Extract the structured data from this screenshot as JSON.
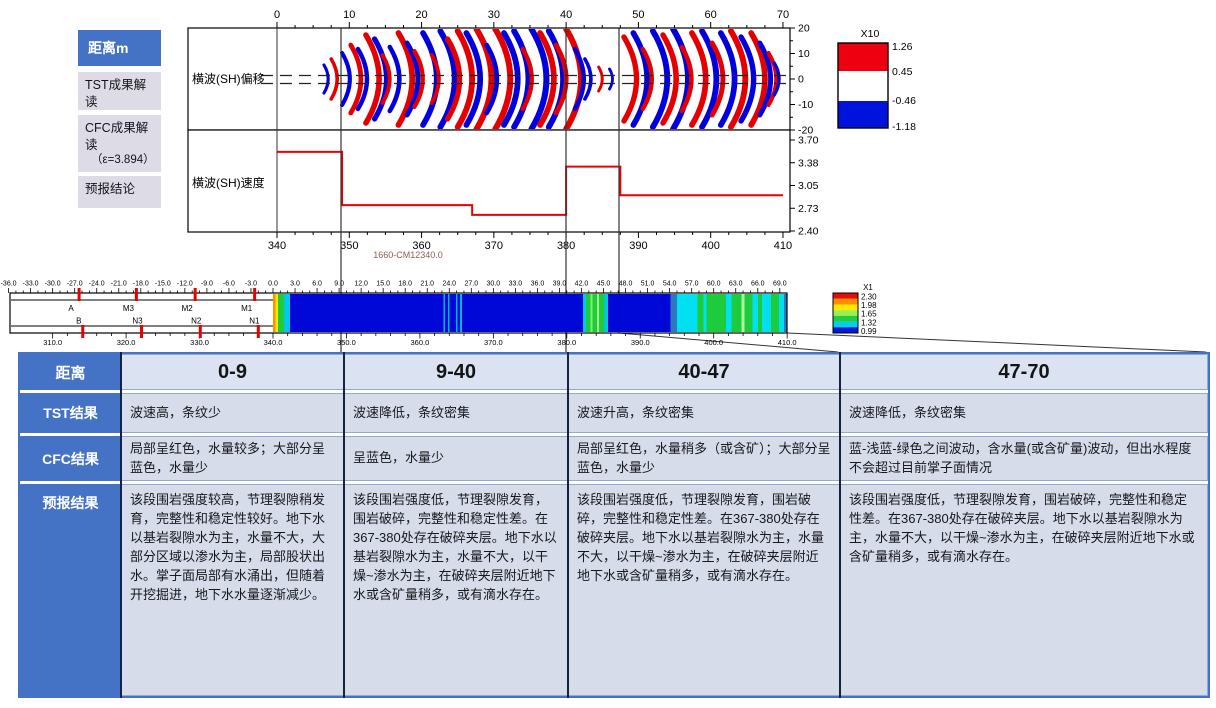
{
  "sidebar": {
    "items": [
      {
        "label": "距离m"
      },
      {
        "label": "TST成果解读"
      },
      {
        "label": "CFC成果解读",
        "sub": "（ε=3.894）"
      },
      {
        "label": "预报结论"
      }
    ]
  },
  "charts": {
    "migration_label": "横波(SH)偏移",
    "velocity_label": "横波(SH)速度",
    "annotation": "1660-CM12340.0",
    "top_axis_ticks": [
      0,
      10,
      20,
      30,
      40,
      50,
      60,
      70
    ],
    "migration_y_ticks": [
      "20",
      "10",
      "0",
      "-10",
      "-20"
    ],
    "velocity_y_ticks": [
      "3.70",
      "3.38",
      "3.05",
      "2.73",
      "2.40"
    ],
    "bottom_axis_ticks": [
      340,
      350,
      360,
      370,
      380,
      390,
      400,
      410
    ],
    "section_lines": [
      9,
      40,
      47
    ]
  },
  "legend_top": {
    "scale": "X10",
    "values": [
      "1.26",
      "0.45",
      "-0.46",
      "-1.18"
    ],
    "band_colors": [
      "#ee0011",
      "#ffffff",
      "#0013dd"
    ]
  },
  "legend_strip": {
    "scale": "X1",
    "values": [
      "2.30",
      "1.98",
      "1.65",
      "1.32",
      "0.99"
    ],
    "band_colors": [
      "#e80b0b",
      "#ff8c00",
      "#ffe800",
      "#9cf04e",
      "#22cc44",
      "#00d0e8",
      "#0018e0"
    ]
  },
  "strip": {
    "ruler_top": {
      "start": -36,
      "end": 69,
      "step": 3
    },
    "ruler_bottom": {
      "start": 310,
      "end": 410,
      "step": 10
    },
    "markers_top": [
      {
        "label": "A",
        "u": -26.4
      },
      {
        "label": "M3",
        "u": -18.6
      },
      {
        "label": "M2",
        "u": -10.6
      },
      {
        "label": "M1",
        "u": -2.5
      }
    ],
    "markers_bottom": [
      {
        "label": "B",
        "u": -25.9
      },
      {
        "label": "N3",
        "u": -17.9
      },
      {
        "label": "N2",
        "u": -9.9
      },
      {
        "label": "N1",
        "u": -2.0
      }
    ]
  },
  "table": {
    "corner": "距离",
    "columns": [
      "0-9",
      "9-40",
      "40-47",
      "47-70"
    ],
    "rows": [
      {
        "label": "TST结果",
        "cells": [
          "波速高，条纹少",
          "波速降低，条纹密集",
          "波速升高，条纹密集",
          "波速降低，条纹密集"
        ]
      },
      {
        "label": "CFC结果",
        "cells": [
          "局部呈红色，水量较多；大部分呈蓝色，水量少",
          "呈蓝色，水量少",
          "局部呈红色，水量稍多（或含矿）；大部分呈蓝色，水量少",
          "蓝-浅蓝-绿色之间波动，含水量(或含矿量)波动，但出水程度不会超过目前掌子面情况"
        ]
      },
      {
        "label": "预报结果",
        "cells": [
          "该段围岩强度较高，节理裂隙稍发育，完整性和稳定性较好。地下水以基岩裂隙水为主，水量不大，大部分区域以渗水为主，局部股状出水。掌子面局部有水涌出，但随着开挖掘进，地下水水量逐渐减少。",
          "该段围岩强度低，节理裂隙发育，围岩破碎，完整性和稳定性差。在367-380处存在破碎夹层。地下水以基岩裂隙水为主，水量不大，以干燥~渗水为主，在破碎夹层附近地下水或含矿量稍多，或有滴水存在。",
          "该段围岩强度低，节理裂隙发育，围岩破碎，完整性和稳定性差。在367-380处存在破碎夹层。地下水以基岩裂隙水为主，水量不大，以干燥~渗水为主，在破碎夹层附近地下水或含矿量稍多，或有滴水存在。",
          "该段围岩强度低，节理裂隙发育，围岩破碎，完整性和稳定性差。在367-380处存在破碎夹层。地下水以基岩裂隙水为主，水量不大，以干燥~渗水为主，在破碎夹层附近地下水或含矿量稍多，或有滴水存在。"
        ]
      }
    ]
  },
  "chart_data": [
    {
      "type": "area",
      "title": "横波(SH)偏移",
      "xlim": [
        0,
        70
      ],
      "ylim": [
        -20,
        20
      ],
      "x_ticks": [
        0,
        10,
        20,
        30,
        40,
        50,
        60,
        70
      ],
      "y_ticks": [
        20,
        10,
        0,
        -10,
        -20
      ],
      "legend": {
        "scale": "X10",
        "levels": [
          1.26,
          0.45,
          -0.46,
          -1.18
        ],
        "colors": [
          "red",
          "white",
          "blue"
        ]
      },
      "section_lines": [
        9,
        40,
        47
      ],
      "arcs": [
        [
          6.5,
          "b",
          14
        ],
        [
          7.5,
          "r",
          20
        ],
        [
          9.0,
          "b",
          26
        ],
        [
          10.2,
          "r",
          34
        ],
        [
          11.2,
          "b",
          30
        ],
        [
          12.3,
          "r",
          44
        ],
        [
          13.5,
          "b",
          40
        ],
        [
          14.6,
          "r",
          24
        ],
        [
          15.6,
          "b",
          32
        ],
        [
          16.8,
          "r",
          46
        ],
        [
          18.0,
          "b",
          36
        ],
        [
          19.0,
          "r",
          28
        ],
        [
          20.2,
          "b",
          46
        ],
        [
          21.4,
          "r",
          24
        ],
        [
          22.6,
          "b",
          48
        ],
        [
          23.6,
          "r",
          40
        ],
        [
          25.0,
          "r",
          48
        ],
        [
          26.2,
          "b",
          46
        ],
        [
          27.6,
          "r",
          50
        ],
        [
          29.0,
          "b",
          34
        ],
        [
          30.2,
          "r",
          50
        ],
        [
          31.4,
          "b",
          46
        ],
        [
          32.8,
          "b",
          48
        ],
        [
          34.0,
          "r",
          30
        ],
        [
          35.2,
          "b",
          50
        ],
        [
          36.4,
          "r",
          46
        ],
        [
          37.6,
          "b",
          48
        ],
        [
          38.6,
          "r",
          34
        ],
        [
          40.0,
          "r",
          50
        ],
        [
          41.2,
          "b",
          30
        ],
        [
          42.6,
          "b",
          20
        ],
        [
          44.5,
          "r",
          12
        ],
        [
          46.0,
          "b",
          10
        ],
        [
          48.0,
          "r",
          42
        ],
        [
          49.3,
          "b",
          46
        ],
        [
          50.6,
          "r",
          30
        ],
        [
          52.0,
          "b",
          48
        ],
        [
          53.4,
          "r",
          44
        ],
        [
          54.8,
          "b",
          50
        ],
        [
          56.0,
          "r",
          32
        ],
        [
          57.4,
          "r",
          46
        ],
        [
          58.8,
          "b",
          48
        ],
        [
          60.2,
          "r",
          36
        ],
        [
          61.4,
          "b",
          46
        ],
        [
          62.8,
          "r",
          48
        ],
        [
          64.2,
          "b",
          42
        ],
        [
          65.6,
          "r",
          46
        ],
        [
          66.8,
          "b",
          36
        ],
        [
          68.0,
          "r",
          26
        ],
        [
          68.8,
          "b",
          16
        ]
      ]
    },
    {
      "type": "line",
      "title": "横波(SH)速度",
      "xlim": [
        340,
        410
      ],
      "x_ticks": [
        340,
        350,
        360,
        370,
        380,
        390,
        400,
        410
      ],
      "y_ticks": [
        3.7,
        3.38,
        3.05,
        2.73,
        2.4
      ],
      "annotation": "1660-CM12340.0",
      "series": [
        {
          "name": "SH-velocity",
          "color": "#ee0000",
          "steps": [
            [
              340,
              349,
              3.53
            ],
            [
              349,
              367,
              2.77
            ],
            [
              367,
              380,
              2.63
            ],
            [
              380,
              387.5,
              3.32
            ],
            [
              387.5,
              410,
              2.91
            ]
          ]
        }
      ]
    },
    {
      "type": "heatmap",
      "title": "CFC strip (chainage 310-410, offset -36 to 70)",
      "legend": {
        "scale": "X1",
        "levels": [
          2.3,
          1.98,
          1.65,
          1.32,
          0.99
        ]
      },
      "segments": [
        [
          0,
          0.35,
          "#ff9100"
        ],
        [
          0.35,
          0.65,
          "#ffe800"
        ],
        [
          0.65,
          1.5,
          "#1ecb3c"
        ],
        [
          1.5,
          2.3,
          "#00c8e8"
        ],
        [
          2.3,
          23.2,
          "#0008d8"
        ],
        [
          23.2,
          23.45,
          "#00b4e0"
        ],
        [
          23.45,
          23.8,
          "#0008d8"
        ],
        [
          23.8,
          24.05,
          "#00b4e0"
        ],
        [
          24.05,
          24.9,
          "#0008d8"
        ],
        [
          24.9,
          25.15,
          "#00b4e0"
        ],
        [
          25.15,
          25.45,
          "#0008d8"
        ],
        [
          25.45,
          25.7,
          "#00b4e0"
        ],
        [
          25.7,
          42.2,
          "#0008d8"
        ],
        [
          42.2,
          42.6,
          "#00c8e8"
        ],
        [
          42.6,
          43.2,
          "#1ecb3c"
        ],
        [
          43.2,
          43.5,
          "#7cf06a"
        ],
        [
          43.5,
          44.1,
          "#1ecb3c"
        ],
        [
          44.1,
          44.4,
          "#a8f890"
        ],
        [
          44.4,
          45.1,
          "#1ecb3c"
        ],
        [
          45.1,
          45.6,
          "#00c8e8"
        ],
        [
          45.6,
          54.1,
          "#0008d8"
        ],
        [
          54.1,
          55,
          "#2f78c0"
        ],
        [
          55,
          57.8,
          "#00e0f0"
        ],
        [
          57.8,
          58.6,
          "#1ecb3c"
        ],
        [
          58.6,
          59,
          "#00e0f0"
        ],
        [
          59,
          61.7,
          "#1ecb3c"
        ],
        [
          61.7,
          62.4,
          "#00e0f0"
        ],
        [
          62.4,
          63.8,
          "#1ecb3c"
        ],
        [
          63.8,
          64.2,
          "#b0f8a0"
        ],
        [
          64.2,
          65.3,
          "#1ecb3c"
        ],
        [
          65.3,
          66,
          "#00e0f0"
        ],
        [
          66,
          66.6,
          "#1ecb3c"
        ],
        [
          66.6,
          67.8,
          "#00e0f0"
        ],
        [
          67.8,
          68.9,
          "#1ecb3c"
        ],
        [
          68.9,
          69.6,
          "#00e0f0"
        ],
        [
          69.6,
          70,
          "#2f78c0"
        ]
      ]
    }
  ]
}
